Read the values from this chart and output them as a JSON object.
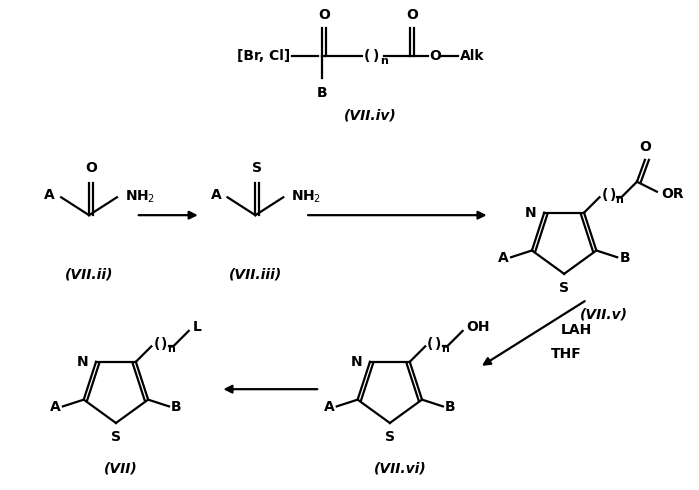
{
  "background_color": "#ffffff",
  "structures": {
    "VII_ii": {
      "label": "(VII.ii)"
    },
    "VII_iii": {
      "label": "(VII.iii)"
    },
    "VII_iv": {
      "label": "(VII.iv)"
    },
    "VII_v": {
      "label": "(VII.v)"
    },
    "VII_vi": {
      "label": "(VII.vi)"
    },
    "VII": {
      "label": "(VII)"
    }
  },
  "font_size_label": 10,
  "font_size_struct": 10,
  "font_size_small": 8,
  "line_width": 1.6
}
